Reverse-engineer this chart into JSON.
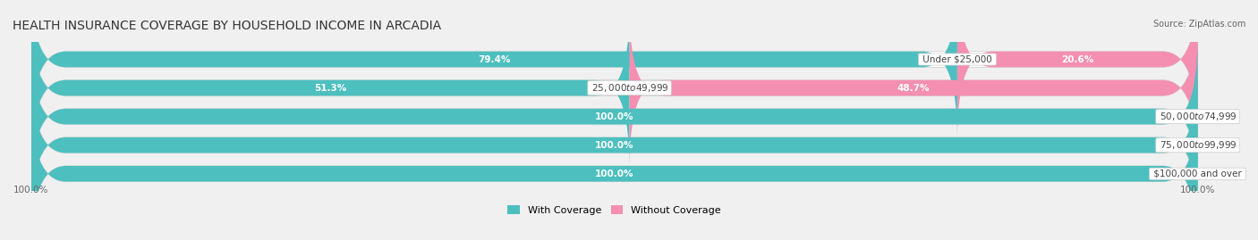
{
  "title": "HEALTH INSURANCE COVERAGE BY HOUSEHOLD INCOME IN ARCADIA",
  "source": "Source: ZipAtlas.com",
  "categories": [
    "Under $25,000",
    "$25,000 to $49,999",
    "$50,000 to $74,999",
    "$75,000 to $99,999",
    "$100,000 and over"
  ],
  "with_coverage": [
    79.4,
    51.3,
    100.0,
    100.0,
    100.0
  ],
  "without_coverage": [
    20.6,
    48.7,
    0.0,
    0.0,
    0.0
  ],
  "color_with": "#4dbfbf",
  "color_without": "#f48fb1",
  "bg_color": "#f0f0f0",
  "bar_bg_color": "#e8e8e8",
  "bar_height": 0.55,
  "title_fontsize": 10,
  "label_fontsize": 7.5,
  "category_fontsize": 7.5,
  "legend_fontsize": 8,
  "footer_fontsize": 7.5
}
